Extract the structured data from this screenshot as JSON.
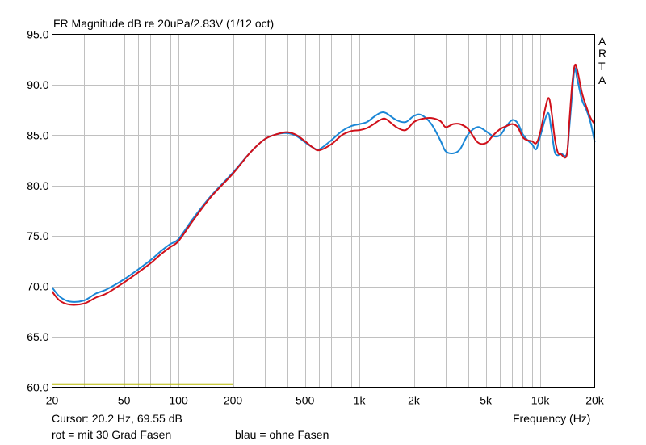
{
  "title": "FR Magnitude dB re 20uPa/2.83V (1/12 oct)",
  "watermark": [
    "A",
    "R",
    "T",
    "A"
  ],
  "cursor_readout": "Cursor: 20.2 Hz, 69.55 dB",
  "legend": {
    "red": "rot = mit 30 Grad Fasen",
    "blue": "blau = ohne Fasen"
  },
  "colors": {
    "red": "#d0101a",
    "blue": "#1a86d6",
    "gate": "#b8b800",
    "grid": "#c0c0c0",
    "plot_border": "#000000"
  },
  "chart_data": {
    "type": "line",
    "title": "FR Magnitude dB re 20uPa/2.83V (1/12 oct)",
    "xlabel": "Frequency (Hz)",
    "ylabel": "",
    "xscale": "log",
    "xlim": [
      20,
      20000
    ],
    "ylim": [
      60,
      95
    ],
    "grid": true,
    "y_ticks": [
      {
        "v": 95,
        "label": "95.0"
      },
      {
        "v": 90,
        "label": "90.0"
      },
      {
        "v": 85,
        "label": "85.0"
      },
      {
        "v": 80,
        "label": "80.0"
      },
      {
        "v": 75,
        "label": "75.0"
      },
      {
        "v": 70,
        "label": "70.0"
      },
      {
        "v": 65,
        "label": "65.0"
      },
      {
        "v": 60,
        "label": "60.0"
      }
    ],
    "x_ticks": [
      {
        "v": 20,
        "label": "20"
      },
      {
        "v": 50,
        "label": "50"
      },
      {
        "v": 100,
        "label": "100"
      },
      {
        "v": 200,
        "label": "200"
      },
      {
        "v": 500,
        "label": "500"
      },
      {
        "v": 1000,
        "label": "1k"
      },
      {
        "v": 2000,
        "label": "2k"
      },
      {
        "v": 5000,
        "label": "5k"
      },
      {
        "v": 10000,
        "label": "10k"
      },
      {
        "v": 20000,
        "label": "20k"
      }
    ],
    "gate_line": {
      "x": [
        20,
        200
      ],
      "y": 60.3
    },
    "series": [
      {
        "name": "blau = ohne Fasen",
        "color": "#1a86d6",
        "x": [
          20,
          22,
          25,
          30,
          35,
          40,
          50,
          60,
          70,
          80,
          90,
          100,
          120,
          150,
          200,
          250,
          300,
          350,
          400,
          450,
          500,
          550,
          600,
          700,
          800,
          900,
          1000,
          1100,
          1200,
          1300,
          1400,
          1600,
          1800,
          2000,
          2200,
          2500,
          2800,
          3000,
          3300,
          3600,
          4000,
          4500,
          5000,
          5500,
          6000,
          6500,
          7000,
          7500,
          8000,
          8500,
          9000,
          9500,
          10000,
          11000,
          11500,
          12000,
          12500,
          13000,
          14000,
          14500,
          15000,
          15500,
          16000,
          17000,
          18000,
          19000,
          20000
        ],
        "y": [
          69.9,
          69.0,
          68.5,
          68.6,
          69.3,
          69.7,
          70.7,
          71.7,
          72.6,
          73.5,
          74.2,
          74.7,
          76.7,
          78.9,
          81.3,
          83.3,
          84.6,
          85.1,
          85.2,
          84.9,
          84.3,
          83.8,
          83.6,
          84.5,
          85.4,
          85.9,
          86.1,
          86.3,
          86.8,
          87.2,
          87.2,
          86.5,
          86.3,
          86.9,
          87.0,
          86.1,
          84.5,
          83.4,
          83.2,
          83.6,
          85.1,
          85.8,
          85.4,
          84.9,
          85.0,
          85.9,
          86.5,
          86.2,
          85.1,
          84.5,
          84.1,
          83.6,
          84.9,
          87.2,
          85.6,
          83.4,
          83.0,
          83.2,
          83.1,
          85.9,
          89.1,
          91.6,
          90.6,
          88.5,
          87.5,
          86.2,
          84.3
        ]
      },
      {
        "name": "rot = mit 30 Grad Fasen",
        "color": "#d0101a",
        "x": [
          20,
          22,
          25,
          30,
          35,
          40,
          50,
          60,
          70,
          80,
          90,
          100,
          120,
          150,
          200,
          250,
          300,
          350,
          400,
          450,
          500,
          550,
          600,
          700,
          800,
          900,
          1000,
          1100,
          1200,
          1300,
          1400,
          1600,
          1800,
          2000,
          2200,
          2500,
          2800,
          3000,
          3300,
          3600,
          4000,
          4500,
          5000,
          5500,
          6000,
          6500,
          7000,
          7500,
          8000,
          8500,
          9000,
          9500,
          10000,
          11000,
          11500,
          12000,
          12500,
          13000,
          14000,
          14500,
          15000,
          15500,
          16000,
          17000,
          18000,
          19000,
          20000
        ],
        "y": [
          69.5,
          68.6,
          68.2,
          68.3,
          68.9,
          69.3,
          70.4,
          71.4,
          72.3,
          73.2,
          73.9,
          74.5,
          76.5,
          78.8,
          81.2,
          83.3,
          84.6,
          85.1,
          85.3,
          85.0,
          84.4,
          83.8,
          83.5,
          84.1,
          85.0,
          85.4,
          85.5,
          85.7,
          86.1,
          86.5,
          86.6,
          85.8,
          85.5,
          86.3,
          86.6,
          86.7,
          86.4,
          85.8,
          86.1,
          86.1,
          85.6,
          84.3,
          84.2,
          85.0,
          85.6,
          85.9,
          86.1,
          85.8,
          84.8,
          84.5,
          84.4,
          84.2,
          85.3,
          88.6,
          87.5,
          84.8,
          83.3,
          83.1,
          83.0,
          86.5,
          90.0,
          91.9,
          91.5,
          89.2,
          87.8,
          86.7,
          86.1
        ]
      }
    ]
  }
}
